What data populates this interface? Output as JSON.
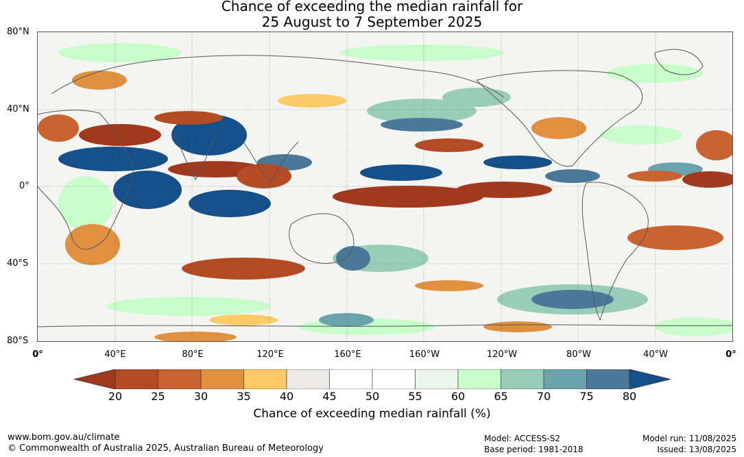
{
  "title": {
    "line1": "Chance of exceeding the median rainfall for",
    "line2": "25 August to 7 September 2025"
  },
  "lat_labels": [
    "80°N",
    "40°N",
    "0°",
    "40°S",
    "80°S"
  ],
  "lon_labels": [
    "0°",
    "40°E",
    "80°E",
    "120°E",
    "160°E",
    "160°W",
    "120°W",
    "80°W",
    "40°W",
    "0°"
  ],
  "colorbar": {
    "ticks": [
      "20",
      "25",
      "30",
      "35",
      "40",
      "45",
      "50",
      "55",
      "60",
      "65",
      "70",
      "75",
      "80"
    ],
    "colors": [
      "#a0391e",
      "#b34b25",
      "#c96431",
      "#e0903f",
      "#fccb66",
      "#ebeae6",
      "#ffffff",
      "#ffffff",
      "#eaf6ea",
      "#c8fcc8",
      "#98ceb8",
      "#6aa3ac",
      "#4a7898",
      "#16508a"
    ],
    "label": "Chance of exceeding median rainfall (%)"
  },
  "footer": {
    "url": "www.bom.gov.au/climate",
    "copyright": "© Commonwealth of Australia 2025, Australian Bureau of Meteorology",
    "model": "Model: ACCESS-S2",
    "base_period": "Base period: 1981-2018",
    "model_run": "Model run: 11/08/2025",
    "issued": "Issued: 13/08/2025"
  }
}
